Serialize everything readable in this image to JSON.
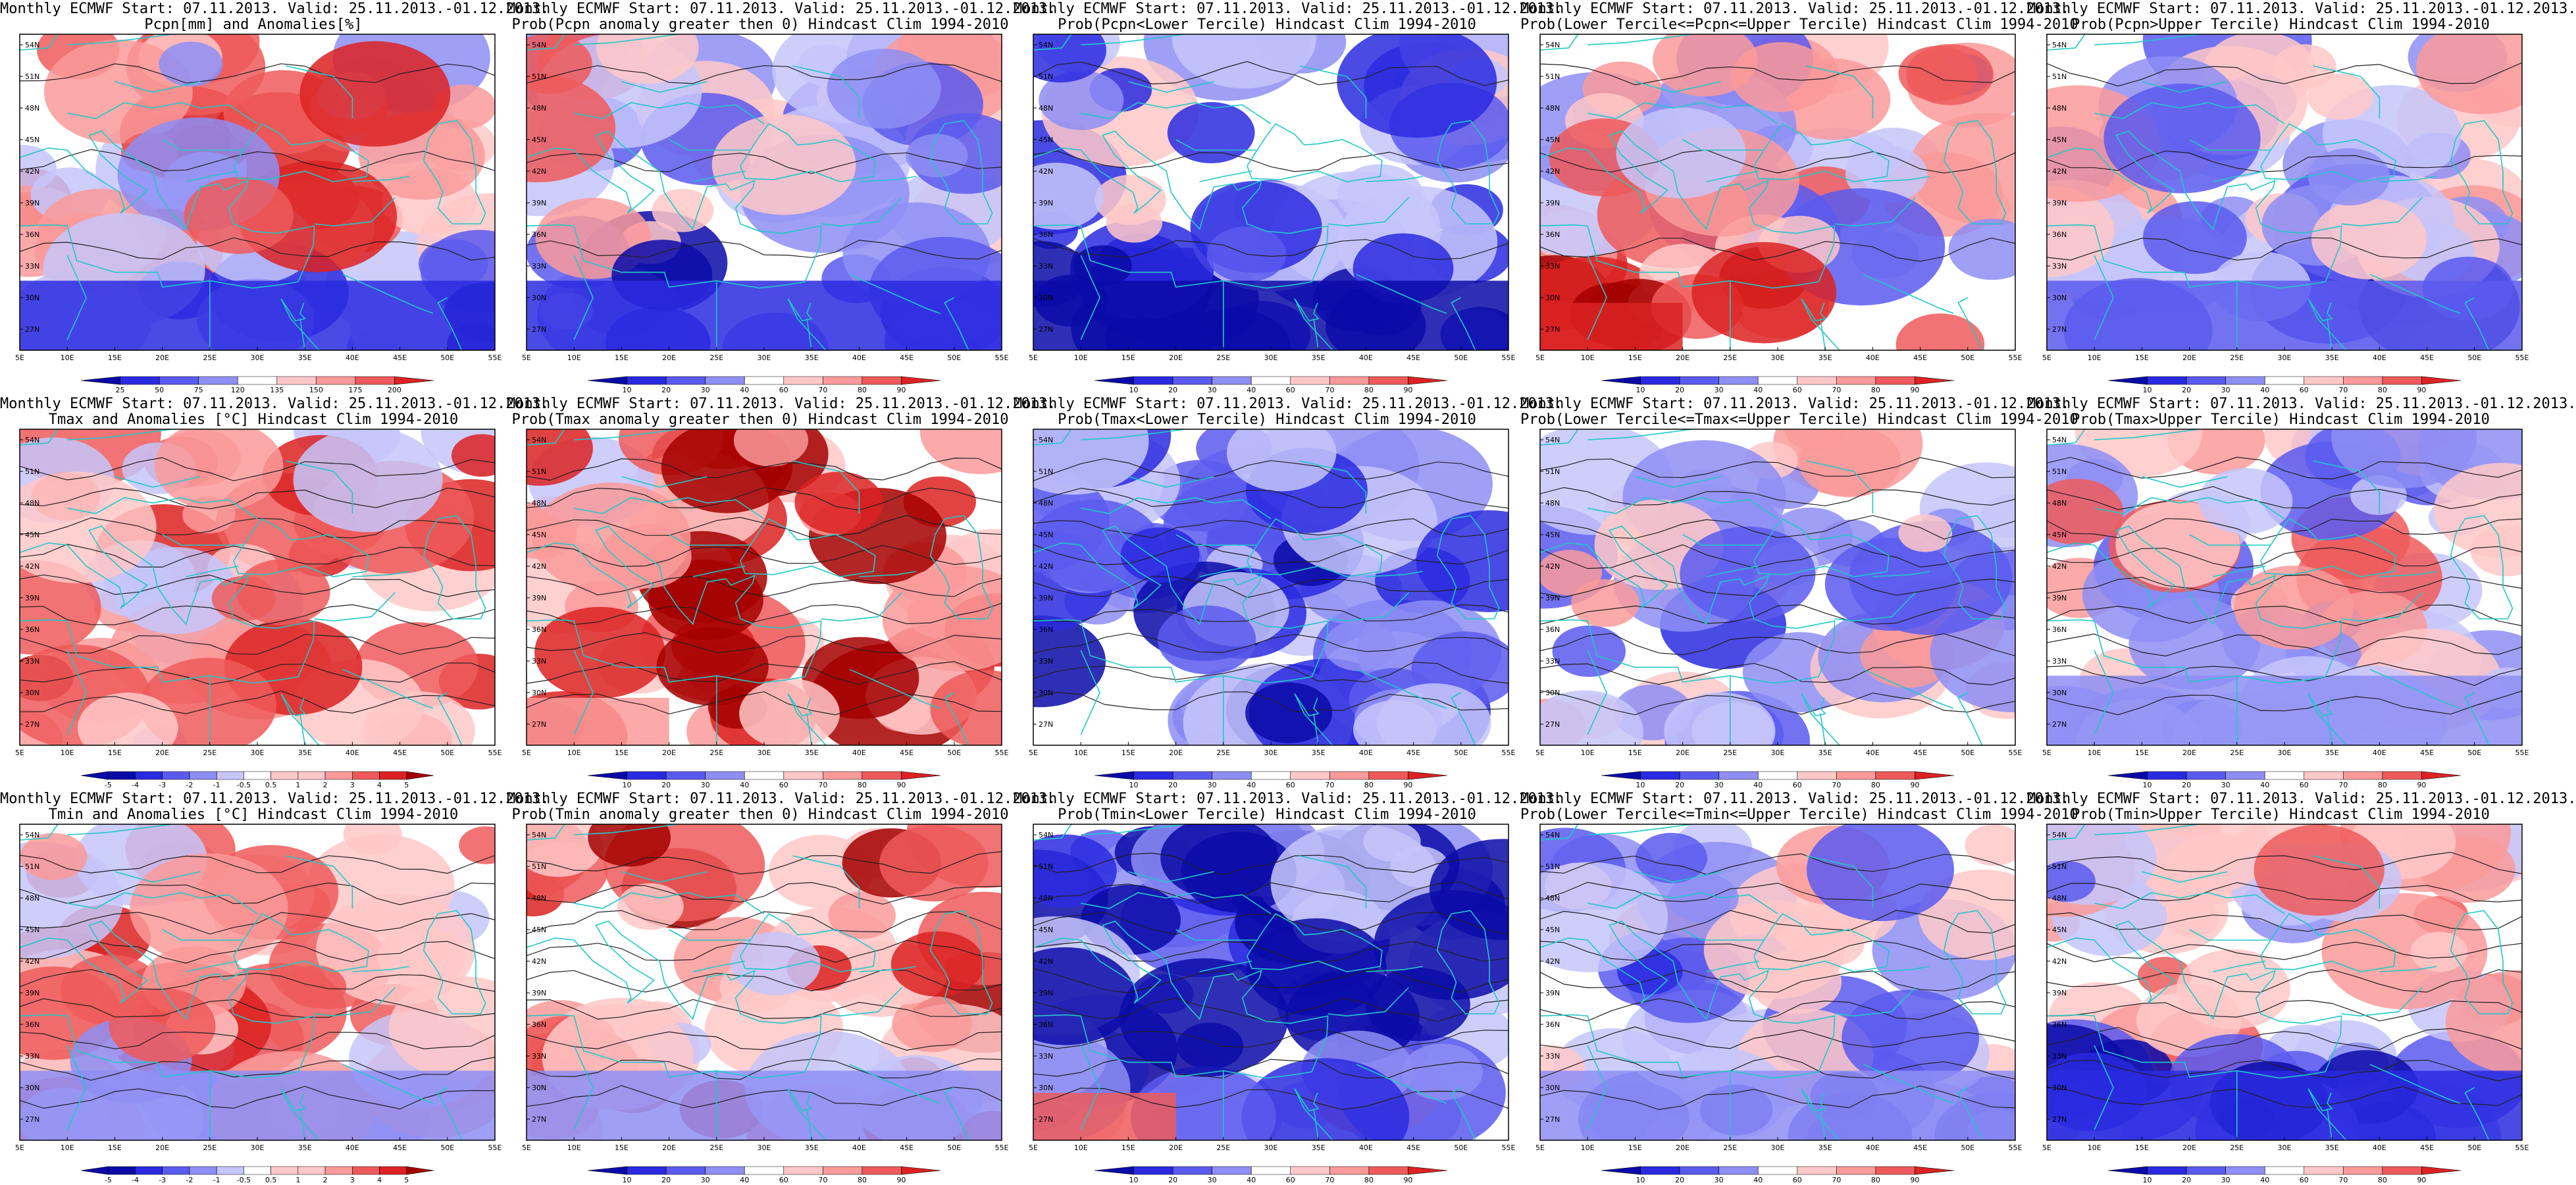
{
  "map_meta": {
    "lat_labels": [
      "54N",
      "51N",
      "48N",
      "45N",
      "42N",
      "39N",
      "36N",
      "33N",
      "30N",
      "27N"
    ],
    "lon_labels": [
      "5E",
      "10E",
      "15E",
      "20E",
      "25E",
      "30E",
      "35E",
      "40E",
      "45E",
      "50E",
      "55E"
    ],
    "colors": {
      "coast": "#20c8c8",
      "contour": "#202020",
      "blues": [
        "#0a0aa8",
        "#2a2ae0",
        "#5a5aee",
        "#8e8ef4",
        "#c6c6fa"
      ],
      "reds": [
        "#ffc8c8",
        "#fa9a9a",
        "#ee5a5a",
        "#dc2222",
        "#a40000"
      ]
    }
  },
  "panels": [
    {
      "title_1": "Monthly ECMWF Start: 07.11.2013. Valid: 25.11.2013.-01.12.2013.",
      "title_2": "Pcpn[mm] and Anomalies[%]",
      "colorbar": [
        "25",
        "50",
        "75",
        "120",
        "135",
        "150",
        "175",
        "200"
      ],
      "bias": 1,
      "south_blue": 3,
      "seed": 1
    },
    {
      "title_1": "Monthly ECMWF Start: 07.11.2013. Valid: 25.11.2013.-01.12.2013.",
      "title_2": "Prob(Pcpn anomaly greater then 0) Hindcast Clim 1994-2010",
      "colorbar": [
        "10",
        "20",
        "30",
        "40",
        "60",
        "70",
        "80",
        "90"
      ],
      "bias": 0,
      "south_blue": 3,
      "seed": 2
    },
    {
      "title_1": "Monthly ECMWF Start: 07.11.2013. Valid: 25.11.2013.-01.12.2013.",
      "title_2": "Prob(Pcpn<Lower Tercile) Hindcast Clim 1994-2010",
      "colorbar": [
        "10",
        "20",
        "30",
        "40",
        "60",
        "70",
        "80",
        "90"
      ],
      "bias": -2,
      "south_blue": 4,
      "seed": 3
    },
    {
      "title_1": "Monthly ECMWF Start: 07.11.2013. Valid: 25.11.2013.-01.12.2013.",
      "title_2": "Prob(Lower Tercile<=Pcpn<=Upper Tercile) Hindcast Clim 1994-2010",
      "colorbar": [
        "10",
        "20",
        "30",
        "40",
        "60",
        "70",
        "80",
        "90"
      ],
      "bias": 0,
      "south_blue": -3,
      "seed": 4
    },
    {
      "title_1": "Monthly ECMWF Start: 07.11.2013. Valid: 25.11.2013.-01.12.2013.",
      "title_2": "Prob(Pcpn>Upper Tercile) Hindcast Clim 1994-2010",
      "colorbar": [
        "10",
        "20",
        "30",
        "40",
        "60",
        "70",
        "80",
        "90"
      ],
      "bias": -1,
      "south_blue": 2,
      "seed": 5
    },
    {
      "title_1": "Monthly ECMWF Start: 07.11.2013. Valid: 25.11.2013.-01.12.2013.",
      "title_2": "Tmax and Anomalies [°C] Hindcast Clim 1994-2010",
      "colorbar": [
        "-5",
        "-4",
        "-3",
        "-2",
        "-1",
        "-0.5",
        "0.5",
        "1",
        "2",
        "3",
        "4",
        "5"
      ],
      "bias": 2,
      "south_blue": 0,
      "seed": 6
    },
    {
      "title_1": "Monthly ECMWF Start: 07.11.2013. Valid: 25.11.2013.-01.12.2013.",
      "title_2": "Prob(Tmax anomaly greater then 0) Hindcast Clim 1994-2010",
      "colorbar": [
        "10",
        "20",
        "30",
        "40",
        "60",
        "70",
        "80",
        "90"
      ],
      "bias": 3,
      "south_blue": -1,
      "seed": 7
    },
    {
      "title_1": "Monthly ECMWF Start: 07.11.2013. Valid: 25.11.2013.-01.12.2013.",
      "title_2": "Prob(Tmax<Lower Tercile) Hindcast Clim 1994-2010",
      "colorbar": [
        "10",
        "20",
        "30",
        "40",
        "60",
        "70",
        "80",
        "90"
      ],
      "bias": -3,
      "south_blue": 0,
      "seed": 8
    },
    {
      "title_1": "Monthly ECMWF Start: 07.11.2013. Valid: 25.11.2013.-01.12.2013.",
      "title_2": "Prob(Lower Tercile<=Tmax<=Upper Tercile) Hindcast Clim 1994-2010",
      "colorbar": [
        "10",
        "20",
        "30",
        "40",
        "60",
        "70",
        "80",
        "90"
      ],
      "bias": -1,
      "south_blue": 0,
      "seed": 9
    },
    {
      "title_1": "Monthly ECMWF Start: 07.11.2013. Valid: 25.11.2013.-01.12.2013.",
      "title_2": "Prob(Tmax>Upper Tercile) Hindcast Clim 1994-2010",
      "colorbar": [
        "10",
        "20",
        "30",
        "40",
        "60",
        "70",
        "80",
        "90"
      ],
      "bias": 0,
      "south_blue": 1,
      "seed": 10
    },
    {
      "title_1": "Monthly ECMWF Start: 07.11.2013. Valid: 25.11.2013.-01.12.2013.",
      "title_2": "Tmin and Anomalies [°C] Hindcast Clim 1994-2010",
      "colorbar": [
        "-5",
        "-4",
        "-3",
        "-2",
        "-1",
        "-0.5",
        "0.5",
        "1",
        "2",
        "3",
        "4",
        "5"
      ],
      "bias": 2,
      "south_blue": 1,
      "seed": 11
    },
    {
      "title_1": "Monthly ECMWF Start: 07.11.2013. Valid: 25.11.2013.-01.12.2013.",
      "title_2": "Prob(Tmin anomaly greater then 0) Hindcast Clim 1994-2010",
      "colorbar": [
        "10",
        "20",
        "30",
        "40",
        "60",
        "70",
        "80",
        "90"
      ],
      "bias": 3,
      "south_blue": 1,
      "seed": 12
    },
    {
      "title_1": "Monthly ECMWF Start: 07.11.2013. Valid: 25.11.2013.-01.12.2013.",
      "title_2": "Prob(Tmin<Lower Tercile) Hindcast Clim 1994-2010",
      "colorbar": [
        "10",
        "20",
        "30",
        "40",
        "60",
        "70",
        "80",
        "90"
      ],
      "bias": -4,
      "south_blue": -2,
      "seed": 13
    },
    {
      "title_1": "Monthly ECMWF Start: 07.11.2013. Valid: 25.11.2013.-01.12.2013.",
      "title_2": "Prob(Lower Tercile<=Tmin<=Upper Tercile) Hindcast Clim 1994-2010",
      "colorbar": [
        "10",
        "20",
        "30",
        "40",
        "60",
        "70",
        "80",
        "90"
      ],
      "bias": -1,
      "south_blue": 1,
      "seed": 14
    },
    {
      "title_1": "Monthly ECMWF Start: 07.11.2013. Valid: 25.11.2013.-01.12.2013.",
      "title_2": "Prob(Tmin>Upper Tercile) Hindcast Clim 1994-2010",
      "colorbar": [
        "10",
        "20",
        "30",
        "40",
        "60",
        "70",
        "80",
        "90"
      ],
      "bias": 0,
      "south_blue": 3,
      "seed": 15
    }
  ]
}
